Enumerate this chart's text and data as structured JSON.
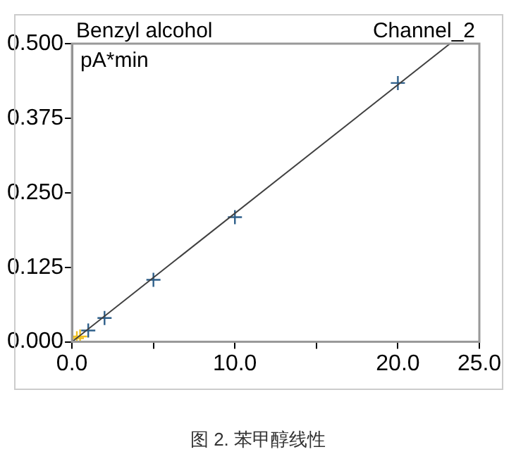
{
  "chart_data": {
    "type": "scatter",
    "title": "Benzyl alcohol",
    "ylabel": "pA*min",
    "annotations": [
      "Channel_2",
      "图 2. 苯甲醇线性"
    ],
    "xlim": [
      0,
      25
    ],
    "xticks": [
      {
        "value": 0,
        "label": "0.0"
      },
      {
        "value": 5,
        "label": null
      },
      {
        "value": 10,
        "label": "10.0"
      },
      {
        "value": 15,
        "label": null
      },
      {
        "value": 20,
        "label": "20.0"
      },
      {
        "value": 25,
        "label": "25.0"
      }
    ],
    "ylim": [
      0,
      0.5
    ],
    "yticks": [
      {
        "value": 0,
        "label": "0.000"
      },
      {
        "value": 0.125,
        "label": "0.125"
      },
      {
        "value": 0.25,
        "label": "0.250"
      },
      {
        "value": 0.375,
        "label": "0.375"
      },
      {
        "value": 0.5,
        "label": "0.500"
      }
    ],
    "grid": false,
    "legend": false,
    "marker": "cross",
    "series": [
      {
        "type": "line",
        "marker": "none",
        "color": "#404040",
        "x": [
          0,
          23.2
        ],
        "values": [
          0,
          0.5
        ]
      },
      {
        "color": "#f0c020",
        "x": [
          0.3,
          0.5
        ],
        "values": [
          0.006,
          0.009
        ]
      },
      {
        "color": "#2e5f8a",
        "x": [
          1,
          2,
          5,
          10,
          20
        ],
        "values": [
          0.019,
          0.04,
          0.104,
          0.209,
          0.434
        ]
      }
    ]
  }
}
